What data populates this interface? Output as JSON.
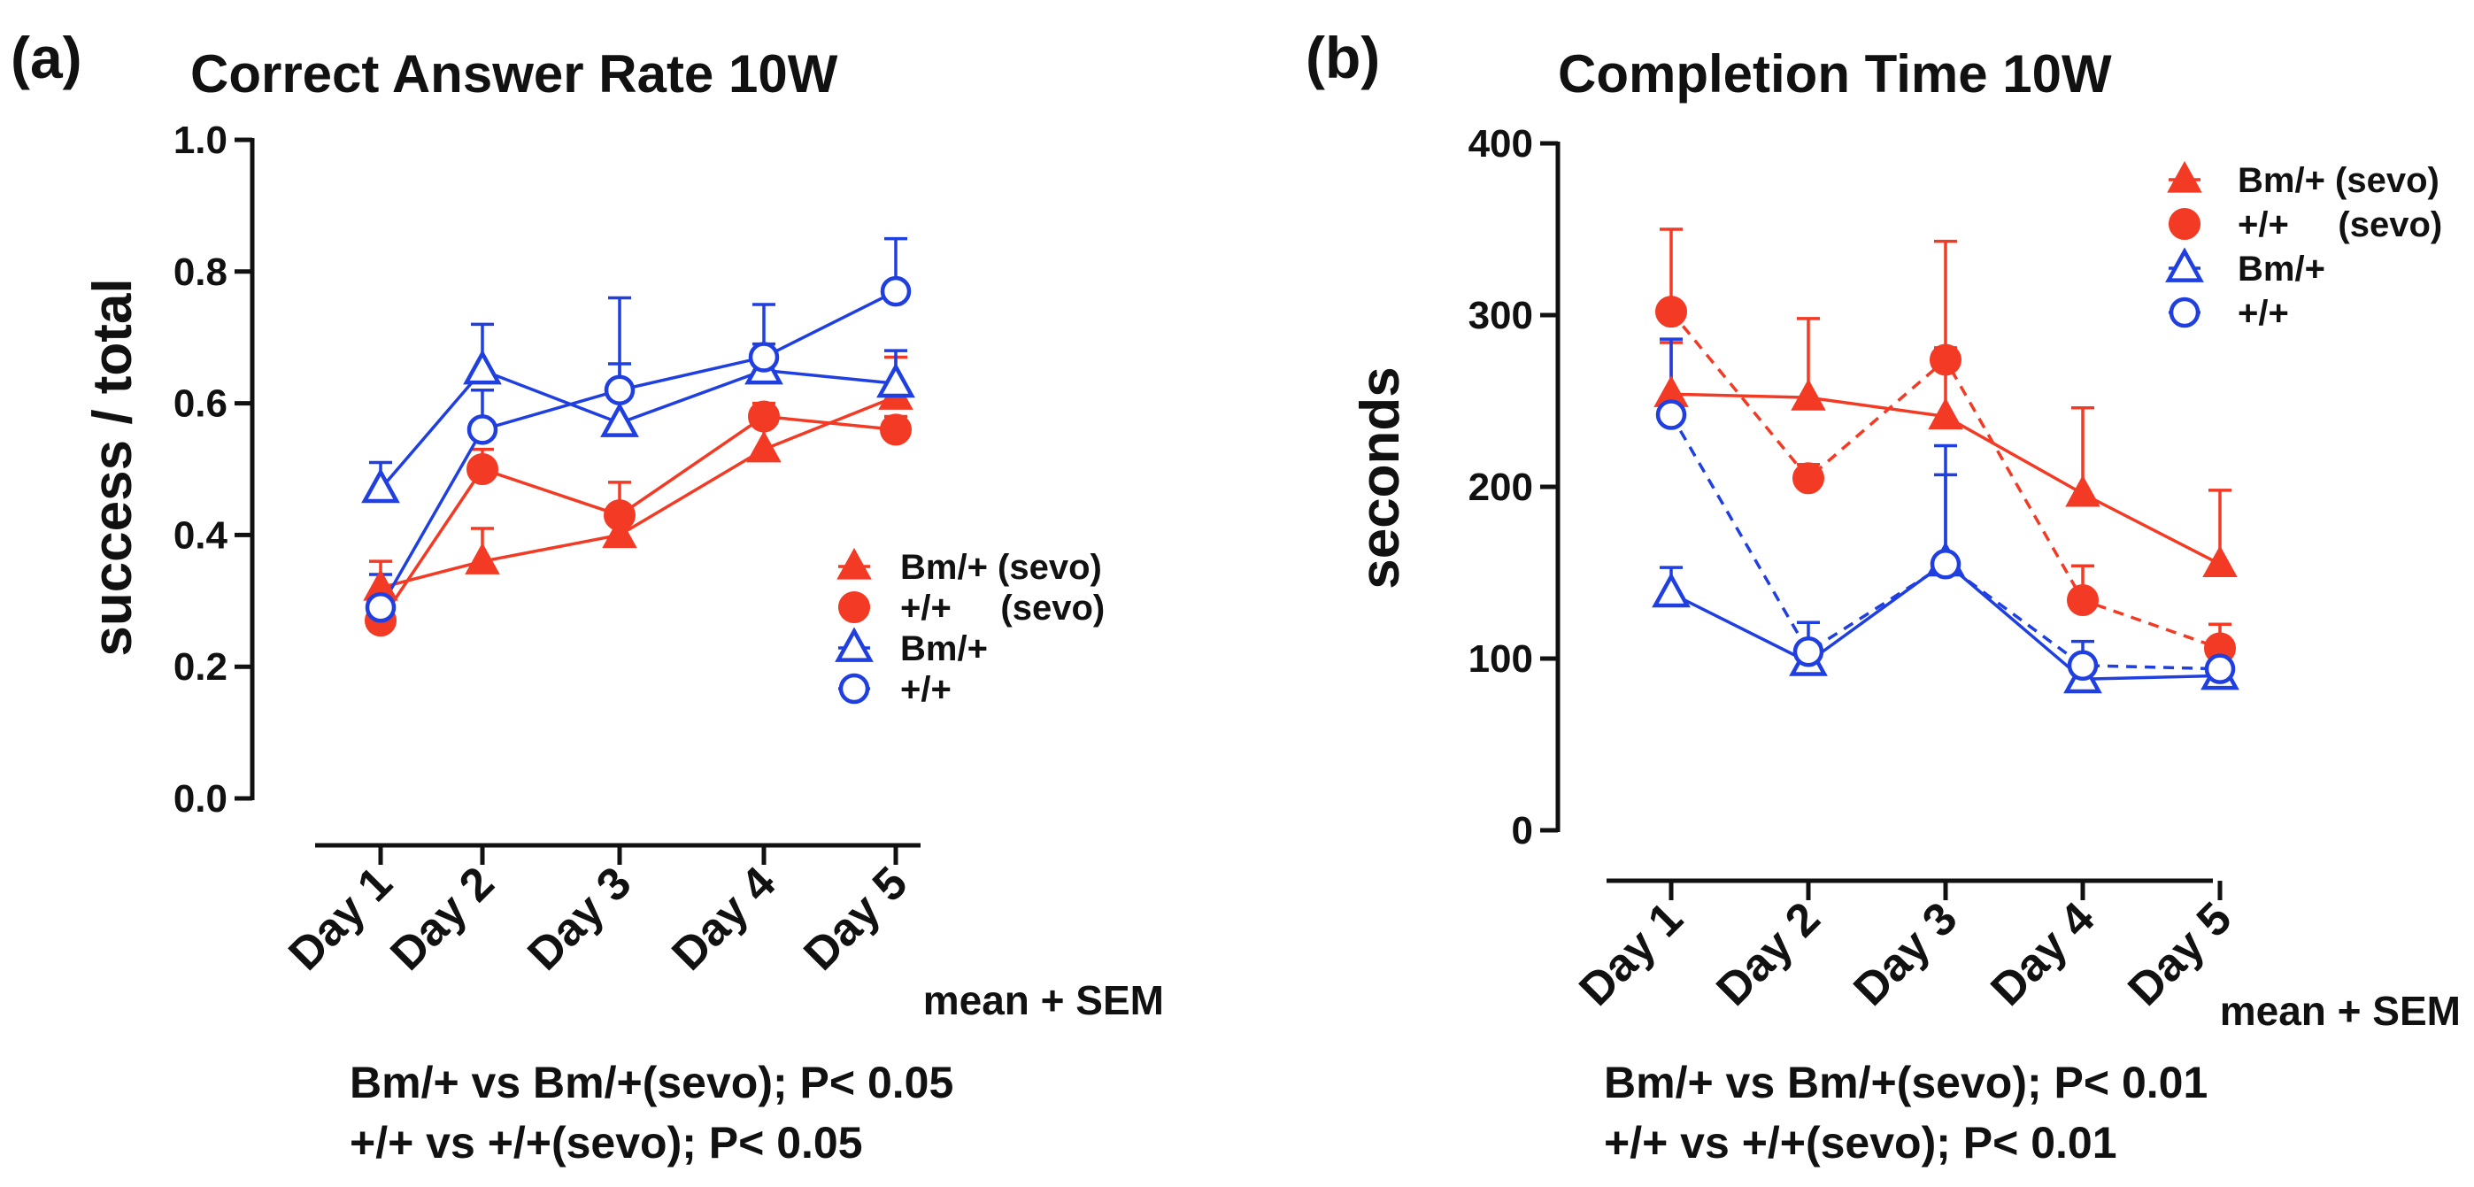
{
  "panels": [
    {
      "label": "(a)",
      "note": "mean + SEM",
      "stats": [
        "Bm/+ vs Bm/+(sevo); P< 0.05",
        "+/+ vs +/+(sevo); P< 0.05"
      ]
    },
    {
      "label": "(b)",
      "note": "mean + SEM",
      "stats": [
        "Bm/+ vs Bm/+(sevo); P< 0.01",
        "+/+ vs +/+(sevo); P< 0.01"
      ]
    }
  ],
  "colors": {
    "sevo": "#f23a24",
    "control": "#1f3fe0",
    "axis": "#111111"
  },
  "chart_data": [
    {
      "type": "line",
      "title": "Correct Answer Rate 10W",
      "xlabel": "",
      "ylabel": "success / total",
      "categories": [
        "Day 1",
        "Day 2",
        "Day 3",
        "Day 4",
        "Day 5"
      ],
      "ylim": [
        0,
        1.0
      ],
      "yticks": [
        0.0,
        0.2,
        0.4,
        0.6,
        0.8,
        1.0
      ],
      "ytick_labels": [
        "0.0",
        "0.2",
        "0.4",
        "0.6",
        "0.8",
        "1.0"
      ],
      "legend_position": "right",
      "series": [
        {
          "name": "Bm/+ (sevo)",
          "legend_label": "Bm/+ (sevo)",
          "marker": "triangle",
          "filled": true,
          "color": "sevo",
          "dashed": false,
          "values": [
            0.32,
            0.36,
            0.4,
            0.53,
            0.61
          ],
          "sem": [
            0.04,
            0.05,
            0.04,
            0.05,
            0.06
          ]
        },
        {
          "name": "+/+ (sevo)",
          "legend_label": "+/+     (sevo)",
          "marker": "circle",
          "filled": true,
          "color": "sevo",
          "dashed": false,
          "values": [
            0.27,
            0.5,
            0.43,
            0.58,
            0.56
          ],
          "sem": [
            0.03,
            0.03,
            0.05,
            0.02,
            0.02
          ]
        },
        {
          "name": "Bm/+",
          "legend_label": "Bm/+",
          "marker": "triangle",
          "filled": false,
          "color": "control",
          "dashed": false,
          "values": [
            0.47,
            0.65,
            0.57,
            0.65,
            0.63
          ],
          "sem": [
            0.04,
            0.07,
            0.09,
            0.04,
            0.05
          ]
        },
        {
          "name": "+/+",
          "legend_label": "+/+",
          "marker": "circle",
          "filled": false,
          "color": "control",
          "dashed": false,
          "values": [
            0.29,
            0.56,
            0.62,
            0.67,
            0.77
          ],
          "sem": [
            0.05,
            0.06,
            0.14,
            0.08,
            0.08
          ]
        }
      ]
    },
    {
      "type": "line",
      "title": "Completion Time 10W",
      "xlabel": "",
      "ylabel": "seconds",
      "categories": [
        "Day 1",
        "Day 2",
        "Day 3",
        "Day 4",
        "Day 5"
      ],
      "ylim": [
        0,
        400
      ],
      "yticks": [
        0,
        100,
        200,
        300,
        400
      ],
      "ytick_labels": [
        "0",
        "100",
        "200",
        "300",
        "400"
      ],
      "legend_position": "top-right",
      "series": [
        {
          "name": "Bm/+ (sevo)",
          "legend_label": "Bm/+ (sevo)",
          "marker": "triangle",
          "filled": true,
          "color": "sevo",
          "dashed": false,
          "values": [
            254,
            252,
            241,
            196,
            155
          ],
          "sem": [
            30,
            46,
            40,
            50,
            43
          ]
        },
        {
          "name": "+/+ (sevo)",
          "legend_label": "+/+     (sevo)",
          "marker": "circle",
          "filled": true,
          "color": "sevo",
          "dashed": true,
          "values": [
            302,
            205,
            274,
            134,
            106
          ],
          "sem": [
            48,
            8,
            69,
            20,
            14
          ]
        },
        {
          "name": "Bm/+",
          "legend_label": "Bm/+",
          "marker": "triangle",
          "filled": false,
          "color": "control",
          "dashed": false,
          "values": [
            138,
            98,
            156,
            88,
            90
          ],
          "sem": [
            15,
            8,
            68,
            6,
            6
          ]
        },
        {
          "name": "+/+",
          "legend_label": "+/+",
          "marker": "circle",
          "filled": false,
          "color": "control",
          "dashed": true,
          "values": [
            242,
            104,
            155,
            96,
            94
          ],
          "sem": [
            44,
            17,
            52,
            14,
            10
          ]
        }
      ]
    }
  ]
}
